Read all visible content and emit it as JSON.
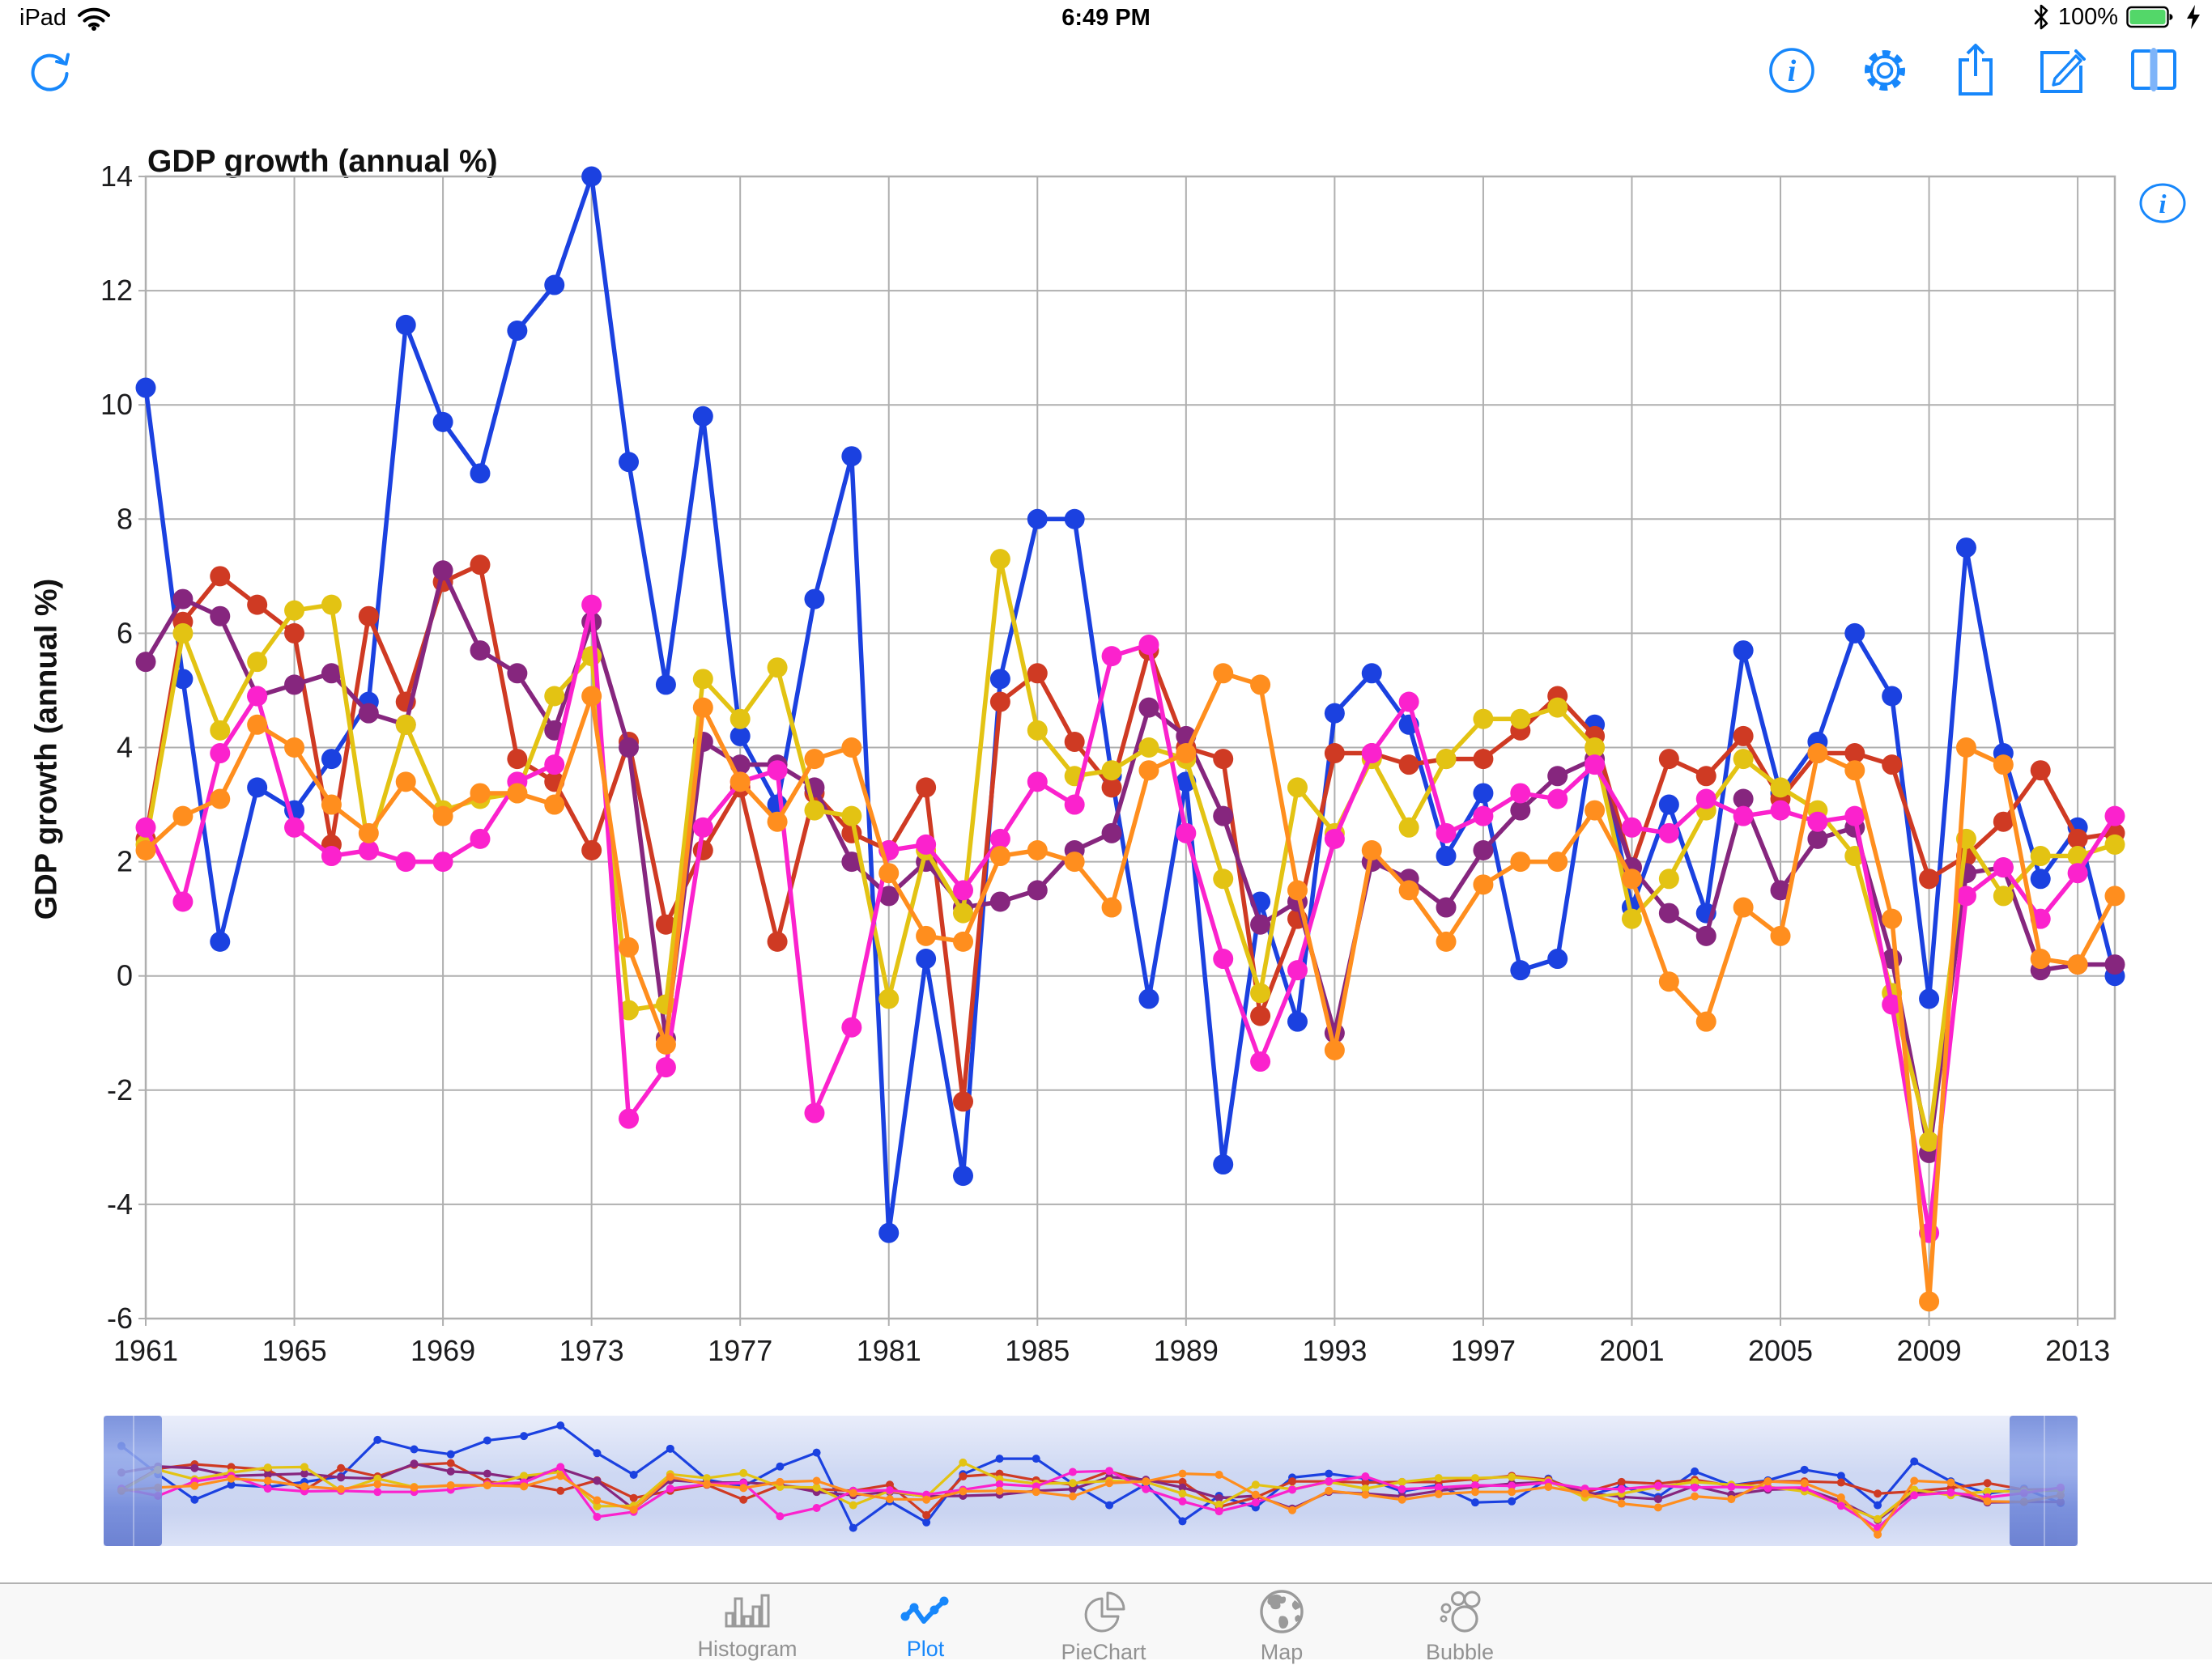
{
  "status_bar": {
    "device": "iPad",
    "time": "6:49 PM",
    "battery_pct": "100%"
  },
  "toolbar": {
    "info_glyph": "i"
  },
  "chart": {
    "title": "GDP growth (annual %)",
    "y_axis_title": "GDP growth (annual %)",
    "info_glyph": "i",
    "y_ticks": [
      14,
      12,
      10,
      8,
      6,
      4,
      2,
      0,
      -2,
      -4,
      -6
    ],
    "x_ticks": [
      1961,
      1965,
      1969,
      1973,
      1977,
      1981,
      1985,
      1989,
      1993,
      1997,
      2001,
      2005,
      2009,
      2013
    ],
    "grid_color": "#afafaf",
    "accent_color": "#1787fb"
  },
  "chart_data": {
    "type": "line",
    "title": "GDP growth (annual %)",
    "xlabel": "",
    "ylabel": "GDP growth (annual %)",
    "xlim": [
      1961,
      2014
    ],
    "ylim": [
      -6,
      14
    ],
    "grid": true,
    "legend_position": "none",
    "x": [
      1961,
      1962,
      1963,
      1964,
      1965,
      1966,
      1967,
      1968,
      1969,
      1970,
      1971,
      1972,
      1973,
      1974,
      1975,
      1976,
      1977,
      1978,
      1979,
      1980,
      1981,
      1982,
      1983,
      1984,
      1985,
      1986,
      1987,
      1988,
      1989,
      1990,
      1991,
      1992,
      1993,
      1994,
      1995,
      1996,
      1997,
      1998,
      1999,
      2000,
      2001,
      2002,
      2003,
      2004,
      2005,
      2006,
      2007,
      2008,
      2009,
      2010,
      2011,
      2012,
      2013,
      2014
    ],
    "series": [
      {
        "name": "series-blue",
        "color": "#1b41e0",
        "values": [
          10.3,
          5.2,
          0.6,
          3.3,
          2.9,
          3.8,
          4.8,
          11.4,
          9.7,
          8.8,
          11.3,
          12.1,
          14.0,
          9.0,
          5.1,
          9.8,
          4.2,
          3.0,
          6.6,
          9.1,
          -4.5,
          0.3,
          -3.5,
          5.2,
          8.0,
          8.0,
          3.5,
          -0.4,
          3.4,
          -3.3,
          1.3,
          -0.8,
          4.6,
          5.3,
          4.4,
          2.1,
          3.2,
          0.1,
          0.3,
          4.4,
          1.2,
          3.0,
          1.1,
          5.7,
          3.2,
          4.1,
          6.0,
          4.9,
          -0.4,
          7.5,
          3.9,
          1.7,
          2.6,
          0.0
        ]
      },
      {
        "name": "series-red",
        "color": "#cf3a23",
        "values": [
          2.4,
          6.2,
          7.0,
          6.5,
          6.0,
          2.3,
          6.3,
          4.8,
          6.9,
          7.2,
          3.8,
          3.4,
          2.2,
          4.1,
          0.9,
          2.2,
          3.3,
          0.6,
          3.2,
          2.5,
          2.2,
          3.3,
          -2.2,
          4.8,
          5.3,
          4.1,
          3.3,
          5.7,
          4.0,
          3.8,
          -0.7,
          1.0,
          3.9,
          3.9,
          3.7,
          3.8,
          3.8,
          4.3,
          4.9,
          4.2,
          1.9,
          3.8,
          3.5,
          4.2,
          3.1,
          3.9,
          3.9,
          3.7,
          1.7,
          2.1,
          2.7,
          3.6,
          2.4,
          2.5
        ]
      },
      {
        "name": "series-purple",
        "color": "#86267e",
        "values": [
          5.5,
          6.6,
          6.3,
          4.9,
          5.1,
          5.3,
          4.6,
          4.4,
          7.1,
          5.7,
          5.3,
          4.3,
          6.2,
          4.0,
          -1.1,
          4.1,
          3.7,
          3.7,
          3.3,
          2.0,
          1.4,
          2.0,
          1.2,
          1.3,
          1.5,
          2.2,
          2.5,
          4.7,
          4.2,
          2.8,
          0.9,
          1.3,
          -1.0,
          2.0,
          1.7,
          1.2,
          2.2,
          2.9,
          3.5,
          3.8,
          1.9,
          1.1,
          0.7,
          3.1,
          1.5,
          2.4,
          2.6,
          0.3,
          -3.1,
          1.8,
          1.9,
          0.1,
          0.2,
          0.2
        ]
      },
      {
        "name": "series-yellow",
        "color": "#e3c313",
        "values": [
          2.3,
          6.0,
          4.3,
          5.5,
          6.4,
          6.5,
          2.2,
          4.4,
          2.9,
          3.1,
          3.2,
          4.9,
          5.6,
          -0.6,
          -0.5,
          5.2,
          4.5,
          5.4,
          2.9,
          2.8,
          -0.4,
          2.2,
          1.1,
          7.3,
          4.3,
          3.5,
          3.6,
          4.0,
          3.8,
          1.7,
          -0.3,
          3.3,
          2.5,
          3.8,
          2.6,
          3.8,
          4.5,
          4.5,
          4.7,
          4.0,
          1.0,
          1.7,
          2.9,
          3.8,
          3.3,
          2.9,
          2.1,
          -0.3,
          -2.9,
          2.4,
          1.4,
          2.1,
          2.1,
          2.3
        ]
      },
      {
        "name": "series-magenta",
        "color": "#fb22cd",
        "values": [
          2.6,
          1.3,
          3.9,
          4.9,
          2.6,
          2.1,
          2.2,
          2.0,
          2.0,
          2.4,
          3.4,
          3.7,
          6.5,
          -2.5,
          -1.6,
          2.6,
          3.4,
          3.6,
          -2.4,
          -0.9,
          2.2,
          2.3,
          1.5,
          2.4,
          3.4,
          3.0,
          5.6,
          5.8,
          2.5,
          0.3,
          -1.5,
          0.1,
          2.4,
          3.9,
          4.8,
          2.5,
          2.8,
          3.2,
          3.1,
          3.7,
          2.6,
          2.5,
          3.1,
          2.8,
          2.9,
          2.7,
          2.8,
          -0.5,
          -4.5,
          1.4,
          1.9,
          1.0,
          1.8,
          2.8
        ]
      },
      {
        "name": "series-orange",
        "color": "#ff8e1e",
        "values": [
          2.2,
          2.8,
          3.1,
          4.4,
          4.0,
          3.0,
          2.5,
          3.4,
          2.8,
          3.2,
          3.2,
          3.0,
          4.9,
          0.5,
          -1.2,
          4.7,
          3.4,
          2.7,
          3.8,
          4.0,
          1.8,
          0.7,
          0.6,
          2.1,
          2.2,
          2.0,
          1.2,
          3.6,
          3.9,
          5.3,
          5.1,
          1.5,
          -1.3,
          2.2,
          1.5,
          0.6,
          1.6,
          2.0,
          2.0,
          2.9,
          1.7,
          -0.1,
          -0.8,
          1.2,
          0.7,
          3.9,
          3.6,
          1.0,
          -5.7,
          4.0,
          3.7,
          0.3,
          0.2,
          1.4
        ]
      }
    ]
  },
  "tab_bar": {
    "items": [
      {
        "label": "Histogram",
        "selected": false
      },
      {
        "label": "Plot",
        "selected": true
      },
      {
        "label": "PieChart",
        "selected": false
      },
      {
        "label": "Map",
        "selected": false
      },
      {
        "label": "Bubble",
        "selected": false
      }
    ]
  }
}
